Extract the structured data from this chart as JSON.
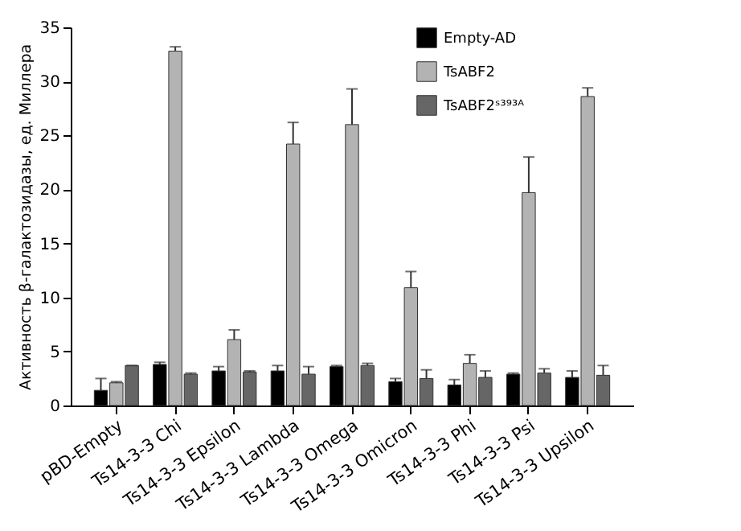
{
  "chart_data": {
    "type": "bar",
    "ylabel": "Активность β-галактозидазы, ед. Миллера",
    "categories": [
      "pBD-Empty",
      "Ts14-3-3 Chi",
      "Ts14-3-3 Epsilon",
      "Ts14-3-3 Lambda",
      "Ts14-3-3 Omega",
      "Ts14-3-3 Omicron",
      "Ts14-3-3 Phi",
      "Ts14-3-3 Psi",
      "Ts14-3-3 Upsilon"
    ],
    "series": [
      {
        "name": "Empty-AD",
        "color": "#000000",
        "values": [
          1.4,
          3.8,
          3.2,
          3.2,
          3.6,
          2.2,
          1.9,
          2.9,
          2.6
        ],
        "errors": [
          [
            1.4,
            2.5
          ],
          [
            3.8,
            4.0
          ],
          [
            3.2,
            3.6
          ],
          [
            3.2,
            3.7
          ],
          [
            3.6,
            3.7
          ],
          [
            2.2,
            2.5
          ],
          [
            1.9,
            2.4
          ],
          [
            2.9,
            3.0
          ],
          [
            2.6,
            3.2
          ]
        ]
      },
      {
        "name": "TsABF2",
        "color": "#b3b3b3",
        "values": [
          2.1,
          32.8,
          6.1,
          24.2,
          26.0,
          10.9,
          3.9,
          19.7,
          28.6
        ],
        "errors": [
          [
            2.1,
            2.2
          ],
          [
            32.8,
            33.2
          ],
          [
            6.1,
            7.0
          ],
          [
            24.2,
            26.2
          ],
          [
            26.0,
            29.3
          ],
          [
            10.9,
            12.4
          ],
          [
            3.9,
            4.7
          ],
          [
            19.7,
            23.0
          ],
          [
            28.6,
            29.4
          ]
        ]
      },
      {
        "name": "TsABF2ˢ³⁹³ᴬ",
        "color": "#666666",
        "values": [
          3.7,
          2.9,
          3.1,
          2.9,
          3.7,
          2.5,
          2.6,
          3.0,
          2.8
        ],
        "errors": [
          [
            3.7,
            3.7
          ],
          [
            2.9,
            3.0
          ],
          [
            3.1,
            3.2
          ],
          [
            2.9,
            3.6
          ],
          [
            3.7,
            3.9
          ],
          [
            2.5,
            3.3
          ],
          [
            2.6,
            3.2
          ],
          [
            3.0,
            3.4
          ],
          [
            2.8,
            3.7
          ]
        ]
      }
    ],
    "ylim": [
      0,
      35
    ],
    "yticks": [
      0,
      5,
      10,
      15,
      20,
      25,
      30,
      35
    ],
    "grid": false,
    "legend": "top right"
  }
}
